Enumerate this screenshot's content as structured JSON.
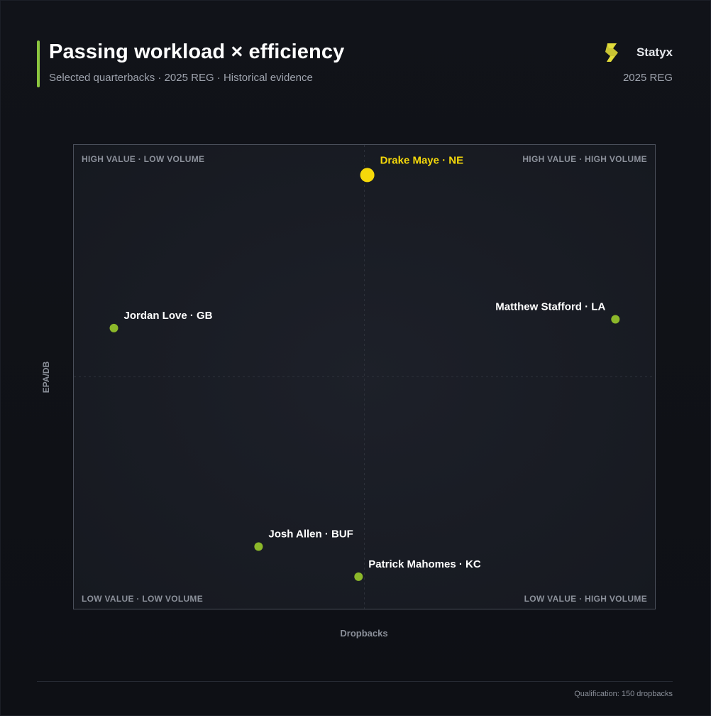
{
  "header": {
    "title": "Passing workload × efficiency",
    "subtitle": "Selected quarterbacks · 2025 REG · Historical evidence",
    "brand_name": "Statyx",
    "brand_season": "2025 REG"
  },
  "footer": {
    "note": "Qualification: 150 dropbacks"
  },
  "colors": {
    "background": "#0f1117",
    "accent": "#8cc63f",
    "highlight": "#f5d90a",
    "point": "#8cb82a"
  },
  "chart_data": {
    "type": "scatter",
    "xlabel": "Dropbacks",
    "ylabel": "EPA/DB",
    "grid": false,
    "quadrant_labels": {
      "top_left": "HIGH VALUE · LOW VOLUME",
      "top_right": "HIGH VALUE · HIGH VOLUME",
      "bottom_left": "LOW VALUE · LOW VOLUME",
      "bottom_right": "LOW VALUE · HIGH VOLUME"
    },
    "points": [
      {
        "label": "Drake Maye · NE",
        "x": 0.505,
        "y": 0.935,
        "highlight": true,
        "label_side": "right"
      },
      {
        "label": "Matthew Stafford · LA",
        "x": 0.932,
        "y": 0.624,
        "highlight": false,
        "label_side": "left"
      },
      {
        "label": "Jordan Love · GB",
        "x": 0.069,
        "y": 0.605,
        "highlight": false,
        "label_side": "right"
      },
      {
        "label": "Josh Allen · BUF",
        "x": 0.318,
        "y": 0.134,
        "highlight": false,
        "label_side": "right"
      },
      {
        "label": "Patrick Mahomes · KC",
        "x": 0.49,
        "y": 0.069,
        "highlight": false,
        "label_side": "right"
      }
    ]
  }
}
